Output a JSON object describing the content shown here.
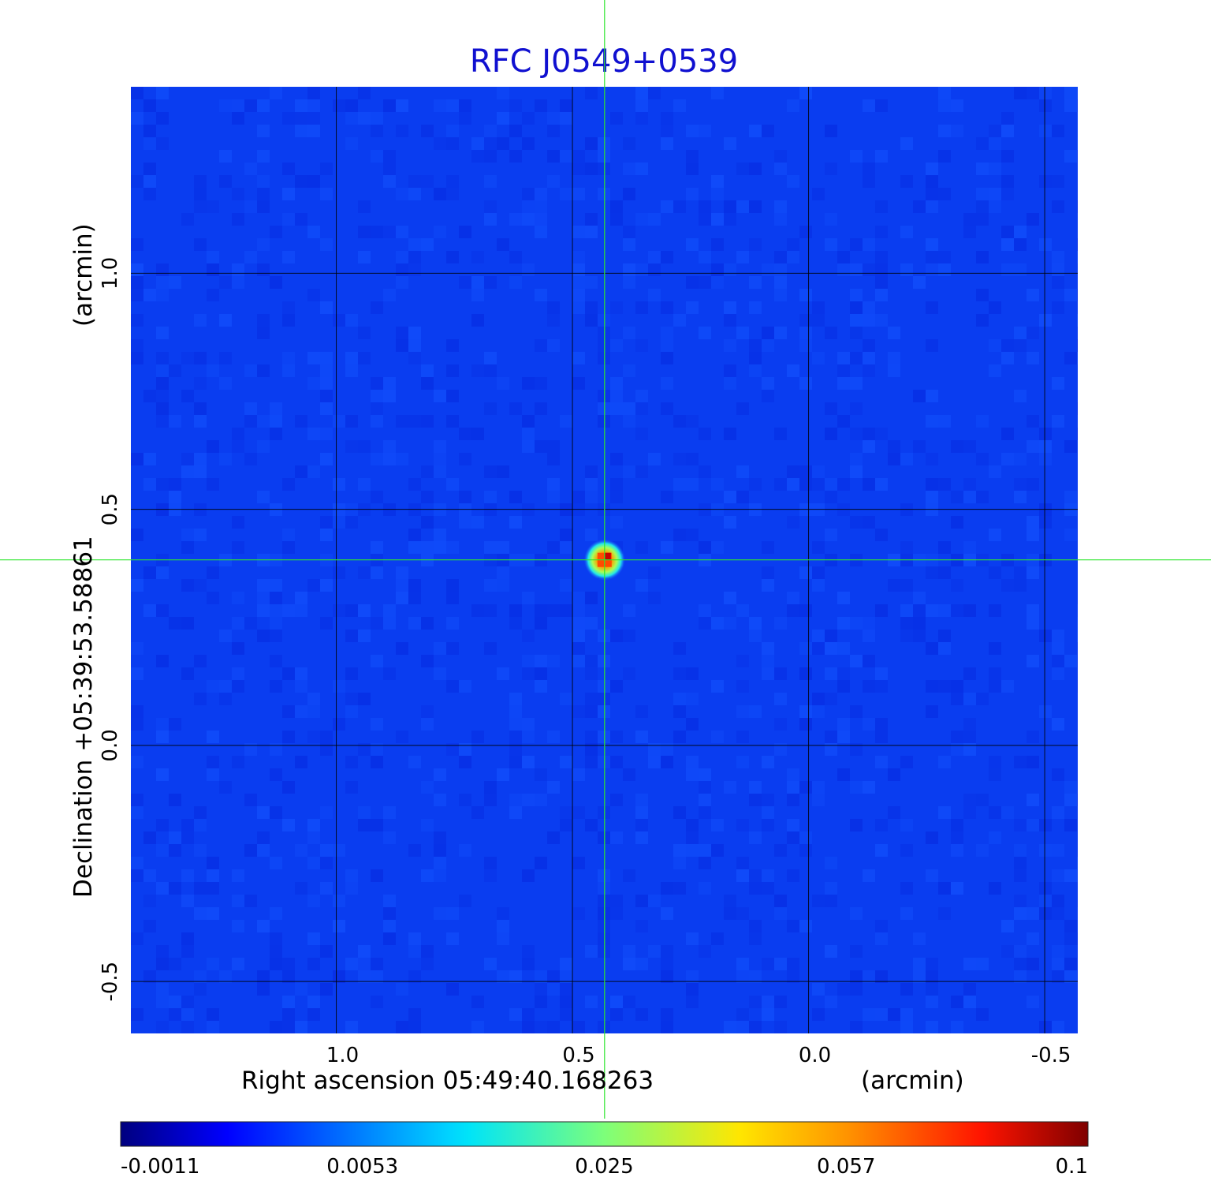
{
  "chart_data": {
    "type": "heatmap",
    "title": "RFC J0549+0539",
    "xlabel": "Right ascension  05:49:40.168263",
    "xunit": "(arcmin)",
    "ylabel": "Declination  +05:39:53.58861",
    "yunit": "(arcmin)",
    "x_ticks": [
      {
        "value": 1.0,
        "label": "1.0"
      },
      {
        "value": 0.5,
        "label": "0.5"
      },
      {
        "value": 0.0,
        "label": "0.0"
      },
      {
        "value": -0.5,
        "label": "-0.5"
      }
    ],
    "y_ticks": [
      {
        "value": 1.0,
        "label": "1.0"
      },
      {
        "value": 0.5,
        "label": "0.5"
      },
      {
        "value": 0.0,
        "label": "0.0"
      },
      {
        "value": -0.5,
        "label": "-0.5"
      }
    ],
    "xlim": [
      1.435,
      -0.57
    ],
    "ylim": [
      -0.61,
      1.395
    ],
    "grid": true,
    "crosshair": {
      "x": 0.432,
      "y": 0.393
    },
    "source": {
      "x": 0.432,
      "y": 0.393,
      "peak": 0.1
    },
    "colorbar": {
      "tick_labels": [
        "-0.0011",
        "0.0053",
        "0.025",
        "0.057",
        "0.1"
      ],
      "range": [
        -0.0011,
        0.1
      ],
      "colormap": "jet"
    },
    "colors": {
      "title": "#1010d0",
      "background_field": "#0a3df0",
      "grid": "#000000",
      "crosshair": "#2ee62e"
    }
  }
}
